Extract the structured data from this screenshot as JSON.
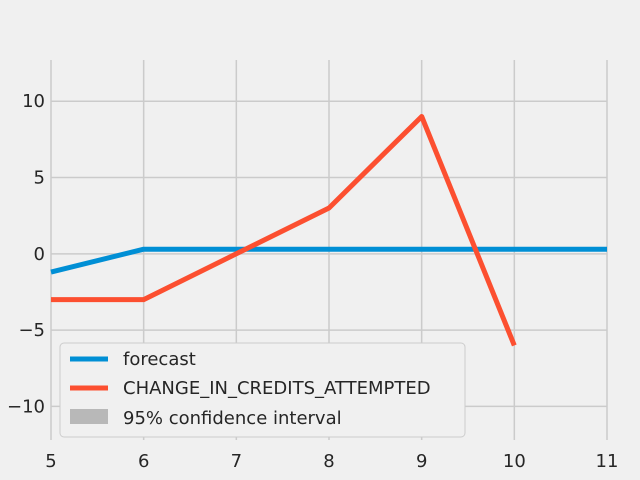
{
  "chart_data": {
    "type": "line",
    "xlim": [
      5,
      11
    ],
    "ylim": [
      -12.2,
      12.7
    ],
    "x_ticks": [
      5,
      6,
      7,
      8,
      9,
      10,
      11
    ],
    "y_ticks": [
      10,
      5,
      0,
      -5,
      -10
    ],
    "y_tick_labels": [
      "10",
      "5",
      "0",
      "−5",
      "−10"
    ],
    "grid": true,
    "legend_position": "bottom-left",
    "series": [
      {
        "name": "forecast",
        "color": "#008fd5",
        "x": [
          5,
          6,
          7,
          8,
          9,
          10,
          11
        ],
        "y": [
          -1.2,
          0.3,
          0.3,
          0.3,
          0.3,
          0.3,
          0.3
        ]
      },
      {
        "name": "CHANGE_IN_CREDITS_ATTEMPTED",
        "color": "#fc4f30",
        "x": [
          5,
          6,
          7,
          8,
          9,
          10
        ],
        "y": [
          -3,
          -3,
          0,
          3,
          9,
          -6
        ]
      }
    ],
    "confidence_band": {
      "name": "95% confidence interval",
      "color": "#b8b8b8"
    }
  }
}
